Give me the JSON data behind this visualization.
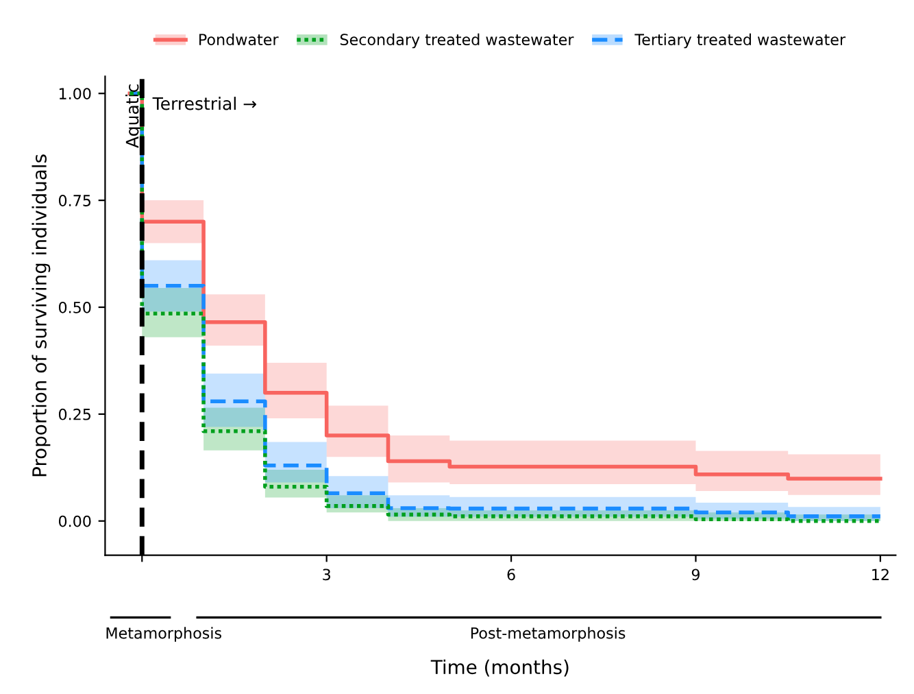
{
  "chart_data": {
    "type": "step",
    "xlabel": "Time (months)",
    "ylabel": "Proportion of surviving individuals",
    "xlim": [
      -0.6,
      12.25
    ],
    "xticks": [
      {
        "value": 0,
        "label": null
      },
      3,
      6,
      9,
      12
    ],
    "ylim": [
      -0.08,
      1.04
    ],
    "yticks": [
      {
        "value": 0,
        "label": "0.00"
      },
      {
        "value": 0.25,
        "label": "0.25"
      },
      {
        "value": 0.5,
        "label": "0.50"
      },
      {
        "value": 0.75,
        "label": "0.75"
      },
      {
        "value": 1,
        "label": "1.00"
      }
    ],
    "grid": false,
    "legend": "top",
    "marker": "none",
    "x": [
      -0.2,
      0,
      1,
      2,
      3,
      4,
      5,
      9,
      10.5,
      12
    ],
    "series": [
      {
        "name": "Pondwater",
        "color": "#f8645f",
        "line_style": "solid",
        "values": [
          1.0,
          0.7,
          0.465,
          0.3,
          0.2,
          0.14,
          0.127,
          0.109,
          0.099,
          0.099
        ],
        "lower": [
          null,
          0.65,
          0.41,
          0.24,
          0.15,
          0.09,
          0.086,
          0.07,
          0.061,
          0.061
        ],
        "upper": [
          null,
          0.75,
          0.53,
          0.37,
          0.27,
          0.2,
          0.188,
          0.164,
          0.156,
          0.156
        ]
      },
      {
        "name": "Secondary treated wastewater",
        "color": "#00a01e",
        "line_style": "dotted",
        "values": [
          1.0,
          0.485,
          0.21,
          0.08,
          0.035,
          0.015,
          0.011,
          0.004,
          0.0,
          0.0
        ],
        "lower": [
          null,
          0.43,
          0.165,
          0.055,
          0.02,
          0.0,
          0.0,
          0.0,
          0.0,
          0.0
        ],
        "upper": [
          null,
          0.545,
          0.265,
          0.12,
          0.06,
          0.03,
          0.025,
          0.02,
          0.015,
          0.015
        ]
      },
      {
        "name": "Tertiary treated wastewater",
        "color": "#1a8cff",
        "line_style": "dashed",
        "values": [
          1.0,
          0.55,
          0.28,
          0.13,
          0.065,
          0.03,
          0.029,
          0.02,
          0.011,
          0.011
        ],
        "lower": [
          null,
          0.49,
          0.22,
          0.09,
          0.03,
          0.01,
          0.01,
          0.005,
          0.0,
          0.0
        ],
        "upper": [
          null,
          0.61,
          0.345,
          0.185,
          0.105,
          0.06,
          0.056,
          0.043,
          0.033,
          0.033
        ]
      }
    ],
    "ref_lines": [
      {
        "axis": "x",
        "value": 0,
        "label": "Aquatic",
        "color": "#000000",
        "line_style": "dashed"
      }
    ],
    "annotations": [
      "Terrestrial →",
      "Metamorphosis",
      "Post-metamorphosis"
    ]
  }
}
